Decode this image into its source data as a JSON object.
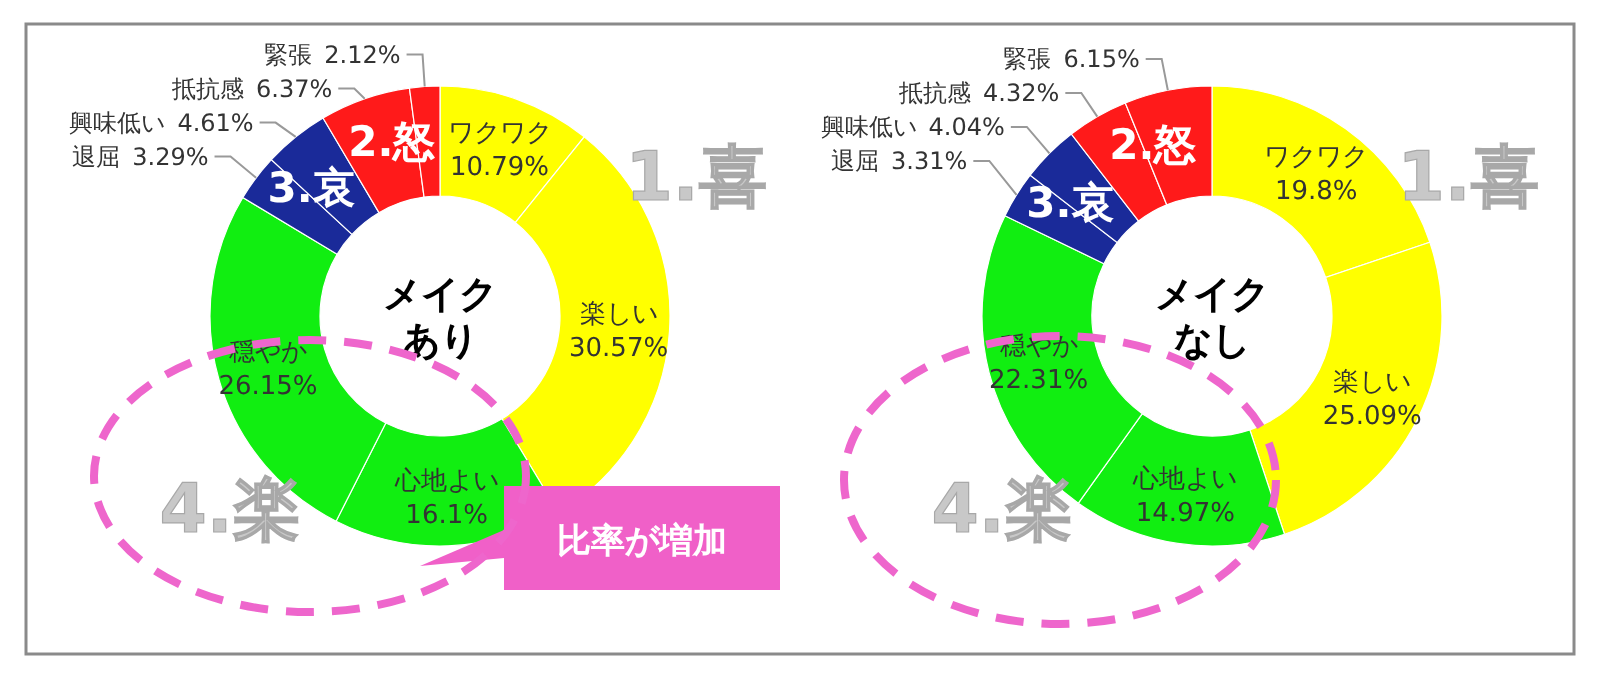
{
  "chart_data": [
    {
      "type": "donut",
      "title": "メイクあり",
      "categories": [
        "ワクワク",
        "楽しい",
        "心地よい",
        "穏やか",
        "退屈",
        "興味低い",
        "抵抗感",
        "緊張"
      ],
      "values": [
        10.79,
        30.57,
        16.1,
        26.15,
        3.29,
        4.61,
        6.37,
        2.12
      ],
      "value_labels": [
        "10.79%",
        "30.57%",
        "16.1%",
        "26.15%",
        "3.29%",
        "4.61%",
        "6.37%",
        "2.12%"
      ],
      "colors": [
        "#ffff00",
        "#ffff00",
        "#11ee11",
        "#11ee11",
        "#1a2a99",
        "#1a2a99",
        "#ff1a1a",
        "#ff1a1a"
      ],
      "annotations": [
        "1.喜",
        "2.怒",
        "3.哀",
        "4.楽",
        "比率が増加"
      ]
    },
    {
      "type": "donut",
      "title": "メイクなし",
      "categories": [
        "ワクワク",
        "楽しい",
        "心地よい",
        "穏やか",
        "退屈",
        "興味低い",
        "抵抗感",
        "緊張"
      ],
      "values": [
        19.8,
        25.09,
        14.97,
        22.31,
        3.31,
        4.04,
        4.32,
        6.15
      ],
      "value_labels": [
        "19.8%",
        "25.09%",
        "14.97%",
        "22.31%",
        "3.31%",
        "4.04%",
        "4.32%",
        "6.15%"
      ],
      "colors": [
        "#ffff00",
        "#ffff00",
        "#11ee11",
        "#11ee11",
        "#1a2a99",
        "#1a2a99",
        "#ff1a1a",
        "#ff1a1a"
      ],
      "annotations": [
        "1.喜",
        "2.怒",
        "3.哀",
        "4.楽"
      ]
    }
  ]
}
